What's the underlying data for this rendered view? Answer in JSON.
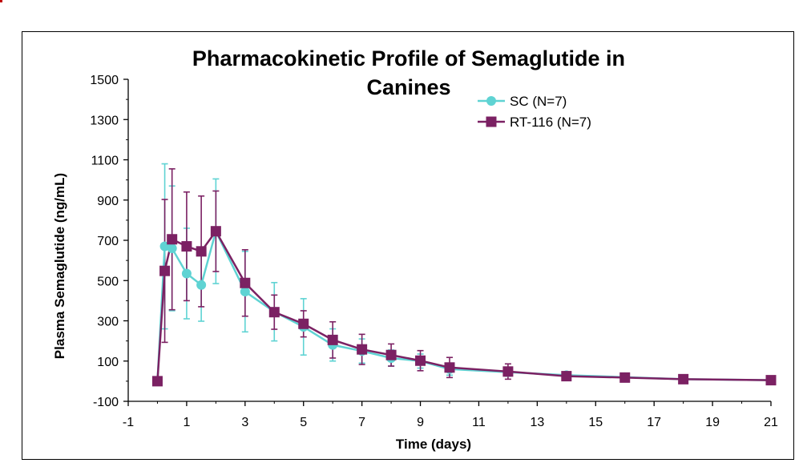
{
  "chart_data": {
    "type": "line",
    "title": "Pharmacokinetic Profile of Semaglutide in Canines",
    "title_lines": [
      "Pharmacokinetic Profile of Semaglutide in",
      "Canines"
    ],
    "xlabel": "Time (days)",
    "ylabel": "Plasma Semaglutide (ng/mL)",
    "xlim": [
      -1,
      21
    ],
    "ylim": [
      -100,
      1500
    ],
    "xticks": [
      -1,
      1,
      3,
      5,
      7,
      9,
      11,
      13,
      15,
      17,
      19,
      21
    ],
    "yticks": [
      -100,
      100,
      300,
      500,
      700,
      900,
      1100,
      1300,
      1500
    ],
    "grid": false,
    "legend_position": "top-right",
    "series": [
      {
        "name": "SC (N=7)",
        "color": "#5fd3d3",
        "marker": "circle",
        "x": [
          0,
          0.25,
          0.5,
          1,
          1.5,
          2,
          3,
          4,
          5,
          6,
          7,
          8,
          9,
          10,
          12,
          14,
          16,
          18,
          21
        ],
        "y": [
          0,
          670,
          660,
          535,
          478,
          745,
          445,
          345,
          270,
          180,
          150,
          115,
          100,
          60,
          45,
          30,
          20,
          10,
          5
        ],
        "err": [
          0,
          410,
          310,
          225,
          180,
          260,
          200,
          145,
          140,
          80,
          60,
          40,
          35,
          30,
          20,
          12,
          8,
          5,
          3
        ]
      },
      {
        "name": "RT-116 (N=7)",
        "color": "#7b2163",
        "marker": "square",
        "x": [
          0,
          0.25,
          0.5,
          1,
          1.5,
          2,
          3,
          4,
          5,
          6,
          7,
          8,
          9,
          10,
          12,
          14,
          16,
          18,
          21
        ],
        "y": [
          0,
          548,
          705,
          670,
          645,
          745,
          488,
          343,
          285,
          205,
          158,
          130,
          102,
          68,
          48,
          25,
          18,
          10,
          5
        ],
        "err": [
          0,
          355,
          350,
          270,
          275,
          200,
          165,
          85,
          65,
          90,
          75,
          55,
          50,
          50,
          38,
          15,
          10,
          6,
          4
        ]
      }
    ]
  }
}
